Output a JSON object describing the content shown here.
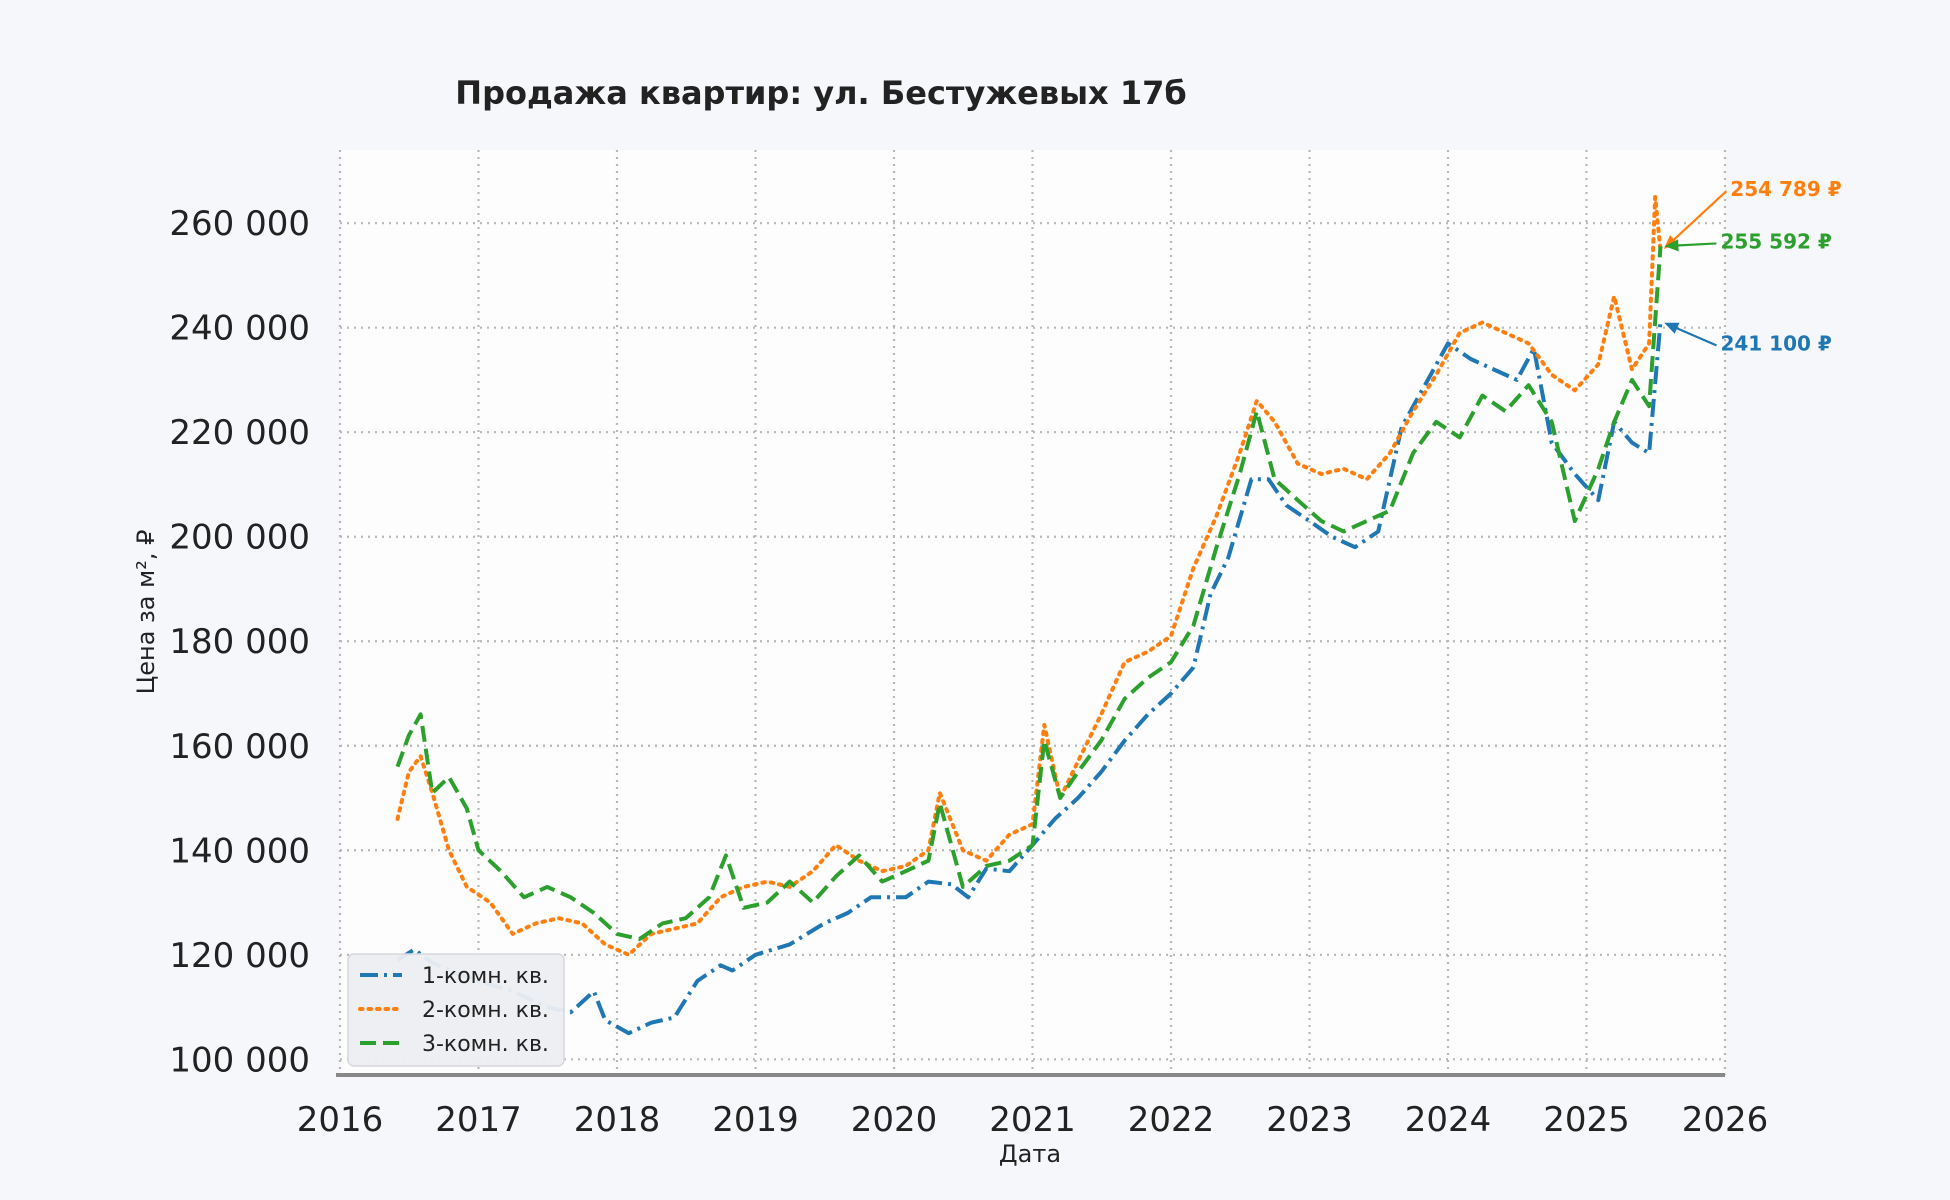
{
  "chart_data": {
    "type": "line",
    "title": "Продажа квартир: ул. Бестужевых 17б",
    "xlabel": "Дата",
    "ylabel": "Цена за м², ₽",
    "xlim": [
      "2016-01-01",
      "2026-01-01"
    ],
    "ylim": [
      97000,
      274000
    ],
    "x_ticks": [
      "2016",
      "2017",
      "2018",
      "2019",
      "2020",
      "2021",
      "2022",
      "2023",
      "2024",
      "2025",
      "2026"
    ],
    "y_ticks": [
      {
        "value": 100000,
        "label": "100 000"
      },
      {
        "value": 120000,
        "label": "120 000"
      },
      {
        "value": 140000,
        "label": "140 000"
      },
      {
        "value": 160000,
        "label": "160 000"
      },
      {
        "value": 180000,
        "label": "180 000"
      },
      {
        "value": 200000,
        "label": "200 000"
      },
      {
        "value": 220000,
        "label": "220 000"
      },
      {
        "value": 240000,
        "label": "240 000"
      },
      {
        "value": 260000,
        "label": "260 000"
      }
    ],
    "grid": true,
    "legend_position": "bottom-left",
    "series": [
      {
        "name": "1-комн. кв.",
        "color": "#1f77b4",
        "dash": "dashdot",
        "points": [
          [
            "2016-06-01",
            119000
          ],
          [
            "2016-07-15",
            121000
          ],
          [
            "2016-09-01",
            118500
          ],
          [
            "2016-11-01",
            116500
          ],
          [
            "2017-01-01",
            115000
          ],
          [
            "2017-04-01",
            113000
          ],
          [
            "2017-07-01",
            110000
          ],
          [
            "2017-09-01",
            109000
          ],
          [
            "2017-11-01",
            113000
          ],
          [
            "2017-12-01",
            107500
          ],
          [
            "2018-02-01",
            105000
          ],
          [
            "2018-04-01",
            107000
          ],
          [
            "2018-06-01",
            108000
          ],
          [
            "2018-08-01",
            115000
          ],
          [
            "2018-10-01",
            118000
          ],
          [
            "2018-11-01",
            117000
          ],
          [
            "2019-01-01",
            120000
          ],
          [
            "2019-04-01",
            122000
          ],
          [
            "2019-07-01",
            126000
          ],
          [
            "2019-09-01",
            128000
          ],
          [
            "2019-11-01",
            131000
          ],
          [
            "2020-02-01",
            131000
          ],
          [
            "2020-04-01",
            134000
          ],
          [
            "2020-06-01",
            133500
          ],
          [
            "2020-07-15",
            131000
          ],
          [
            "2020-09-01",
            136500
          ],
          [
            "2020-11-01",
            136000
          ],
          [
            "2021-01-01",
            141000
          ],
          [
            "2021-03-01",
            146000
          ],
          [
            "2021-05-01",
            150000
          ],
          [
            "2021-07-01",
            155000
          ],
          [
            "2021-09-01",
            161000
          ],
          [
            "2021-11-01",
            166000
          ],
          [
            "2022-01-01",
            170000
          ],
          [
            "2022-03-01",
            175000
          ],
          [
            "2022-04-15",
            189000
          ],
          [
            "2022-06-01",
            196000
          ],
          [
            "2022-08-01",
            211000
          ],
          [
            "2022-09-15",
            211000
          ],
          [
            "2022-11-01",
            206000
          ],
          [
            "2023-01-01",
            203000
          ],
          [
            "2023-03-01",
            200000
          ],
          [
            "2023-05-01",
            198000
          ],
          [
            "2023-07-01",
            201000
          ],
          [
            "2023-09-01",
            221000
          ],
          [
            "2023-11-01",
            229000
          ],
          [
            "2024-01-01",
            237000
          ],
          [
            "2024-03-01",
            234000
          ],
          [
            "2024-05-01",
            232000
          ],
          [
            "2024-07-01",
            230000
          ],
          [
            "2024-08-15",
            236000
          ],
          [
            "2024-10-01",
            218000
          ],
          [
            "2024-12-01",
            212000
          ],
          [
            "2025-02-01",
            207000
          ],
          [
            "2025-03-15",
            222000
          ],
          [
            "2025-05-01",
            218000
          ],
          [
            "2025-06-15",
            216000
          ],
          [
            "2025-07-15",
            241100
          ]
        ]
      },
      {
        "name": "2-комн. кв.",
        "color": "#ff7f0e",
        "dash": "dotted",
        "points": [
          [
            "2016-06-01",
            146000
          ],
          [
            "2016-07-01",
            155000
          ],
          [
            "2016-08-01",
            158000
          ],
          [
            "2016-09-01",
            151000
          ],
          [
            "2016-10-15",
            140000
          ],
          [
            "2016-12-01",
            133000
          ],
          [
            "2017-02-01",
            130000
          ],
          [
            "2017-04-01",
            124000
          ],
          [
            "2017-06-01",
            126000
          ],
          [
            "2017-08-01",
            127000
          ],
          [
            "2017-10-01",
            126000
          ],
          [
            "2017-12-01",
            122000
          ],
          [
            "2018-02-01",
            120000
          ],
          [
            "2018-04-01",
            124000
          ],
          [
            "2018-06-01",
            125000
          ],
          [
            "2018-08-01",
            126000
          ],
          [
            "2018-10-01",
            131000
          ],
          [
            "2018-12-01",
            133000
          ],
          [
            "2019-02-01",
            134000
          ],
          [
            "2019-04-01",
            133000
          ],
          [
            "2019-06-01",
            136000
          ],
          [
            "2019-08-01",
            141000
          ],
          [
            "2019-10-01",
            138000
          ],
          [
            "2019-12-01",
            136000
          ],
          [
            "2020-02-01",
            137000
          ],
          [
            "2020-04-01",
            140000
          ],
          [
            "2020-05-01",
            151000
          ],
          [
            "2020-07-01",
            140000
          ],
          [
            "2020-09-01",
            138000
          ],
          [
            "2020-11-01",
            143000
          ],
          [
            "2021-01-01",
            145000
          ],
          [
            "2021-02-01",
            164000
          ],
          [
            "2021-03-15",
            150000
          ],
          [
            "2021-05-01",
            157000
          ],
          [
            "2021-07-01",
            166000
          ],
          [
            "2021-09-01",
            176000
          ],
          [
            "2021-11-01",
            178000
          ],
          [
            "2022-01-01",
            181000
          ],
          [
            "2022-03-01",
            194000
          ],
          [
            "2022-05-01",
            204000
          ],
          [
            "2022-07-01",
            216000
          ],
          [
            "2022-08-15",
            226000
          ],
          [
            "2022-10-01",
            222000
          ],
          [
            "2022-12-01",
            214000
          ],
          [
            "2023-02-01",
            212000
          ],
          [
            "2023-04-01",
            213000
          ],
          [
            "2023-06-01",
            211000
          ],
          [
            "2023-08-01",
            216000
          ],
          [
            "2023-10-01",
            224000
          ],
          [
            "2023-12-01",
            231000
          ],
          [
            "2024-02-01",
            239000
          ],
          [
            "2024-04-01",
            241000
          ],
          [
            "2024-06-01",
            239000
          ],
          [
            "2024-08-01",
            237000
          ],
          [
            "2024-10-01",
            231000
          ],
          [
            "2024-12-01",
            228000
          ],
          [
            "2025-02-01",
            233000
          ],
          [
            "2025-03-15",
            246000
          ],
          [
            "2025-05-01",
            232000
          ],
          [
            "2025-06-15",
            237000
          ],
          [
            "2025-07-01",
            265000
          ],
          [
            "2025-07-15",
            254789
          ]
        ]
      },
      {
        "name": "3-комн. кв.",
        "color": "#2ca02c",
        "dash": "dashed",
        "points": [
          [
            "2016-06-01",
            156000
          ],
          [
            "2016-07-01",
            162000
          ],
          [
            "2016-08-01",
            166000
          ],
          [
            "2016-09-01",
            151000
          ],
          [
            "2016-10-15",
            154000
          ],
          [
            "2016-12-01",
            148000
          ],
          [
            "2017-01-01",
            140000
          ],
          [
            "2017-03-01",
            136000
          ],
          [
            "2017-05-01",
            131000
          ],
          [
            "2017-07-01",
            133000
          ],
          [
            "2017-09-01",
            131000
          ],
          [
            "2017-11-01",
            128000
          ],
          [
            "2018-01-01",
            124000
          ],
          [
            "2018-03-01",
            123000
          ],
          [
            "2018-05-01",
            126000
          ],
          [
            "2018-07-01",
            127000
          ],
          [
            "2018-09-01",
            131000
          ],
          [
            "2018-10-15",
            139000
          ],
          [
            "2018-12-01",
            129000
          ],
          [
            "2019-02-01",
            130000
          ],
          [
            "2019-04-01",
            134000
          ],
          [
            "2019-06-01",
            130000
          ],
          [
            "2019-08-01",
            135000
          ],
          [
            "2019-10-01",
            139000
          ],
          [
            "2019-12-01",
            134000
          ],
          [
            "2020-02-01",
            136000
          ],
          [
            "2020-04-01",
            138000
          ],
          [
            "2020-05-01",
            149000
          ],
          [
            "2020-07-01",
            133000
          ],
          [
            "2020-09-01",
            137000
          ],
          [
            "2020-11-01",
            138000
          ],
          [
            "2021-01-01",
            141000
          ],
          [
            "2021-02-01",
            161000
          ],
          [
            "2021-03-15",
            150000
          ],
          [
            "2021-05-01",
            155000
          ],
          [
            "2021-07-01",
            161000
          ],
          [
            "2021-09-01",
            169000
          ],
          [
            "2021-11-01",
            173000
          ],
          [
            "2022-01-01",
            176000
          ],
          [
            "2022-03-01",
            183000
          ],
          [
            "2022-05-01",
            198000
          ],
          [
            "2022-07-01",
            212000
          ],
          [
            "2022-08-15",
            224000
          ],
          [
            "2022-10-01",
            211000
          ],
          [
            "2022-12-01",
            207000
          ],
          [
            "2023-02-01",
            203000
          ],
          [
            "2023-04-01",
            201000
          ],
          [
            "2023-06-01",
            203000
          ],
          [
            "2023-08-01",
            205000
          ],
          [
            "2023-10-01",
            216000
          ],
          [
            "2023-12-01",
            222000
          ],
          [
            "2024-02-01",
            219000
          ],
          [
            "2024-04-01",
            227000
          ],
          [
            "2024-06-01",
            224000
          ],
          [
            "2024-08-01",
            229000
          ],
          [
            "2024-10-01",
            222000
          ],
          [
            "2024-12-01",
            203000
          ],
          [
            "2025-02-01",
            213000
          ],
          [
            "2025-03-15",
            222000
          ],
          [
            "2025-05-01",
            230000
          ],
          [
            "2025-06-15",
            225000
          ],
          [
            "2025-07-15",
            255592
          ]
        ]
      }
    ],
    "annotations": [
      {
        "series": "2-комн. кв.",
        "text": "254 789 ₽",
        "color": "#ff7f0e",
        "anchor": [
          "2025-07-20",
          254789
        ],
        "label_at": [
          "2026-01-15",
          266500
        ]
      },
      {
        "series": "3-комн. кв.",
        "text": "255 592 ₽",
        "color": "#2ca02c",
        "anchor": [
          "2025-07-20",
          255592
        ],
        "label_at": [
          "2025-12-20",
          256500
        ]
      },
      {
        "series": "1-комн. кв.",
        "text": "241 100 ₽",
        "color": "#1f77b4",
        "anchor": [
          "2025-07-20",
          241100
        ],
        "label_at": [
          "2025-12-20",
          237000
        ]
      }
    ]
  }
}
